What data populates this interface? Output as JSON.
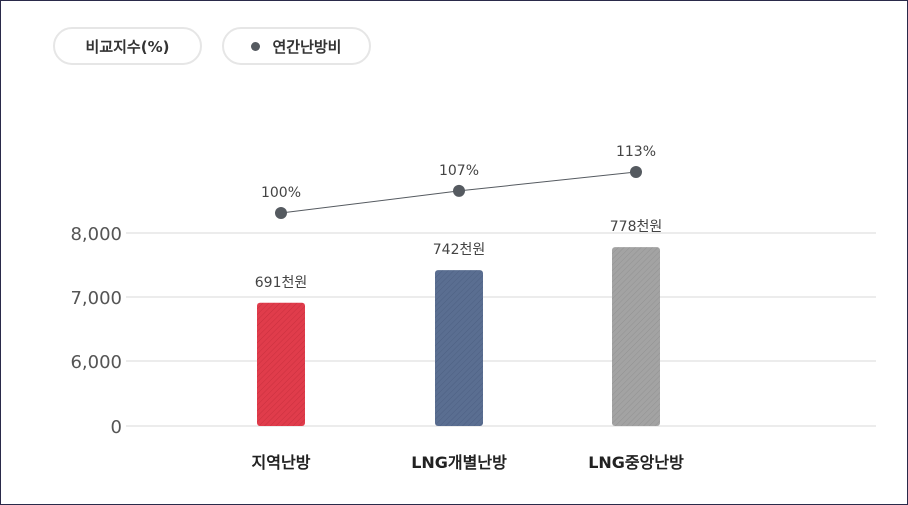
{
  "legend": {
    "index_label": "비교지수(%)",
    "annual_label": "연간난방비"
  },
  "colors": {
    "district": "#e03c4b",
    "lng_individual": "#5a6e91",
    "lng_central": "#a0a0a0",
    "line": "#555a60",
    "grid": "#ececec"
  },
  "chart_data": {
    "type": "bar",
    "categories": [
      "지역난방",
      "LNG개별난방",
      "LNG중앙난방"
    ],
    "y_ticks": [
      "8,000",
      "7,000",
      "6,000",
      "0"
    ],
    "y_axis_note": "broken axis: 0 then 6,000–8,000",
    "bar_values": [
      691,
      742,
      778
    ],
    "bar_unit": "천원",
    "bar_labels": [
      "691천원",
      "742천원",
      "778천원"
    ],
    "line_values": [
      100,
      107,
      113
    ],
    "line_labels": [
      "100%",
      "107%",
      "113%"
    ],
    "grid": true,
    "legend_position": "top-left"
  }
}
